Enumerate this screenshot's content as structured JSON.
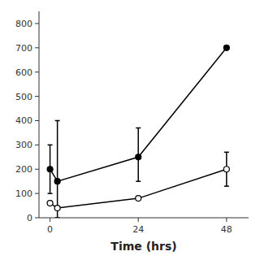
{
  "chart_data": {
    "type": "line",
    "x": [
      0,
      2,
      24,
      48
    ],
    "series": [
      {
        "color": "#000000",
        "marker": "filled-circle",
        "values": [
          200,
          150,
          250,
          700
        ],
        "error_low": [
          100,
          150,
          100,
          0
        ],
        "error_high": [
          100,
          250,
          120,
          0
        ]
      },
      {
        "color": "#000000",
        "marker": "open-circle",
        "values": [
          60,
          40,
          80,
          200
        ],
        "error_low": [
          0,
          0,
          0,
          70
        ],
        "error_high": [
          0,
          0,
          0,
          70
        ]
      }
    ],
    "xlabel": "Time (hrs)",
    "xlim": [
      -3,
      54
    ],
    "xticks": [
      0,
      24,
      48
    ],
    "ylim": [
      0,
      850
    ],
    "yticks": [
      0,
      100,
      200,
      300,
      400,
      500,
      600,
      700,
      800
    ],
    "grid": false
  }
}
